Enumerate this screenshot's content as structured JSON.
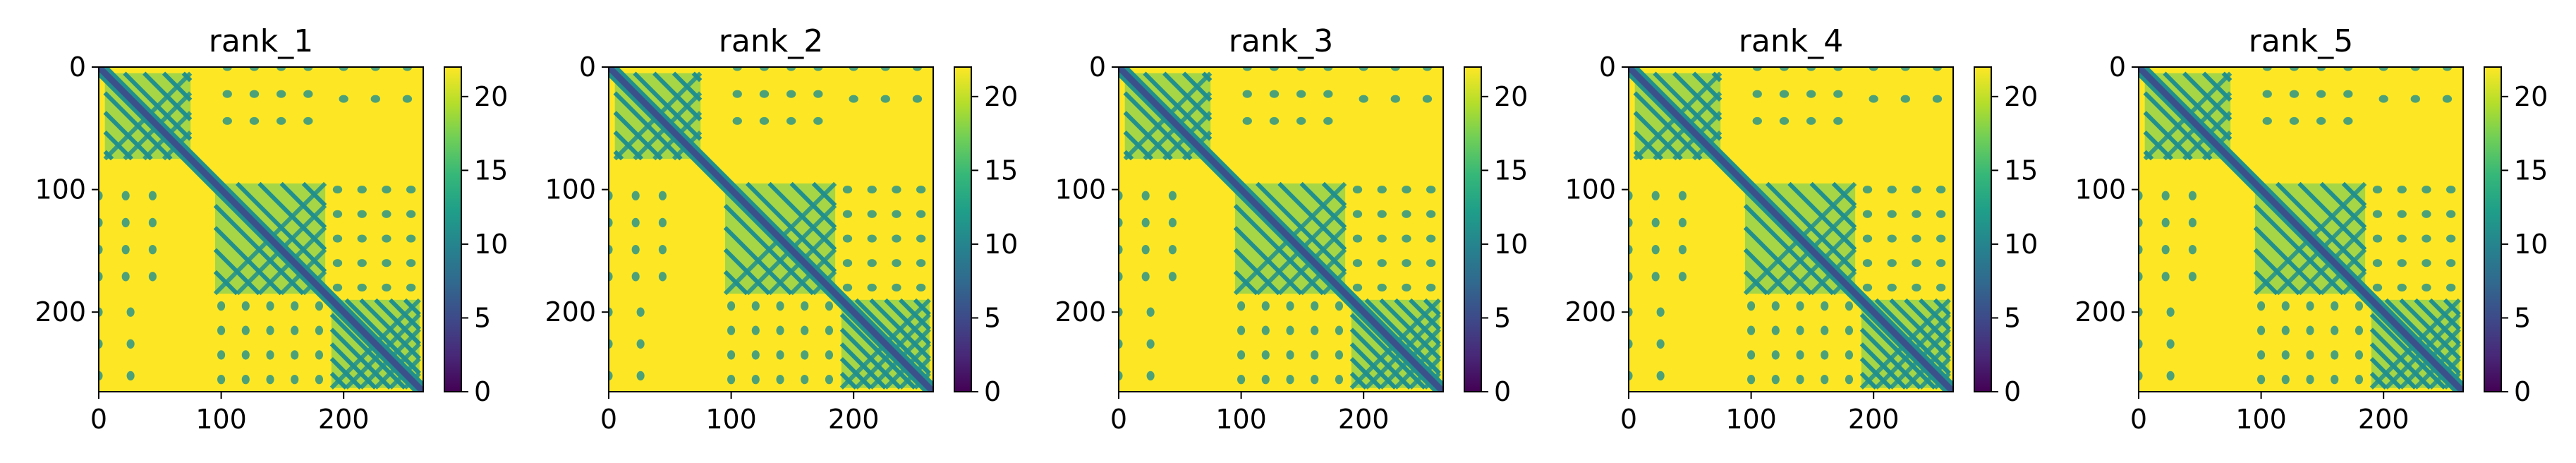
{
  "chart_data": [
    {
      "type": "heatmap",
      "title": "rank_1",
      "xlim": [
        0,
        265
      ],
      "ylim": [
        265,
        0
      ],
      "xticks": [
        0,
        100,
        200
      ],
      "yticks": [
        0,
        100,
        200
      ],
      "colorbar": {
        "range": [
          0,
          22
        ],
        "ticks": [
          0,
          5,
          10,
          15,
          20
        ],
        "colormap": "viridis"
      }
    },
    {
      "type": "heatmap",
      "title": "rank_2",
      "xlim": [
        0,
        265
      ],
      "ylim": [
        265,
        0
      ],
      "xticks": [
        0,
        100,
        200
      ],
      "yticks": [
        0,
        100,
        200
      ],
      "colorbar": {
        "range": [
          0,
          22
        ],
        "ticks": [
          0,
          5,
          10,
          15,
          20
        ],
        "colormap": "viridis"
      }
    },
    {
      "type": "heatmap",
      "title": "rank_3",
      "xlim": [
        0,
        265
      ],
      "ylim": [
        265,
        0
      ],
      "xticks": [
        0,
        100,
        200
      ],
      "yticks": [
        0,
        100,
        200
      ],
      "colorbar": {
        "range": [
          0,
          22
        ],
        "ticks": [
          0,
          5,
          10,
          15,
          20
        ],
        "colormap": "viridis"
      }
    },
    {
      "type": "heatmap",
      "title": "rank_4",
      "xlim": [
        0,
        265
      ],
      "ylim": [
        265,
        0
      ],
      "xticks": [
        0,
        100,
        200
      ],
      "yticks": [
        0,
        100,
        200
      ],
      "colorbar": {
        "range": [
          0,
          22
        ],
        "ticks": [
          0,
          5,
          10,
          15,
          20
        ],
        "colormap": "viridis"
      }
    },
    {
      "type": "heatmap",
      "title": "rank_5",
      "xlim": [
        0,
        265
      ],
      "ylim": [
        265,
        0
      ],
      "xticks": [
        0,
        100,
        200
      ],
      "yticks": [
        0,
        100,
        200
      ],
      "colorbar": {
        "range": [
          0,
          22
        ],
        "ticks": [
          0,
          5,
          10,
          15,
          20
        ],
        "colormap": "viridis"
      }
    }
  ],
  "colors": {
    "background": "#fde725",
    "contact_strong": "#3b518b",
    "contact_mid": "#21908d",
    "contact_light": "#5ec962",
    "viridis_stops": [
      "#440154",
      "#482878",
      "#3e4989",
      "#31688e",
      "#26828e",
      "#1f9e89",
      "#35b779",
      "#6ece58",
      "#b5de2b",
      "#fde725"
    ]
  }
}
